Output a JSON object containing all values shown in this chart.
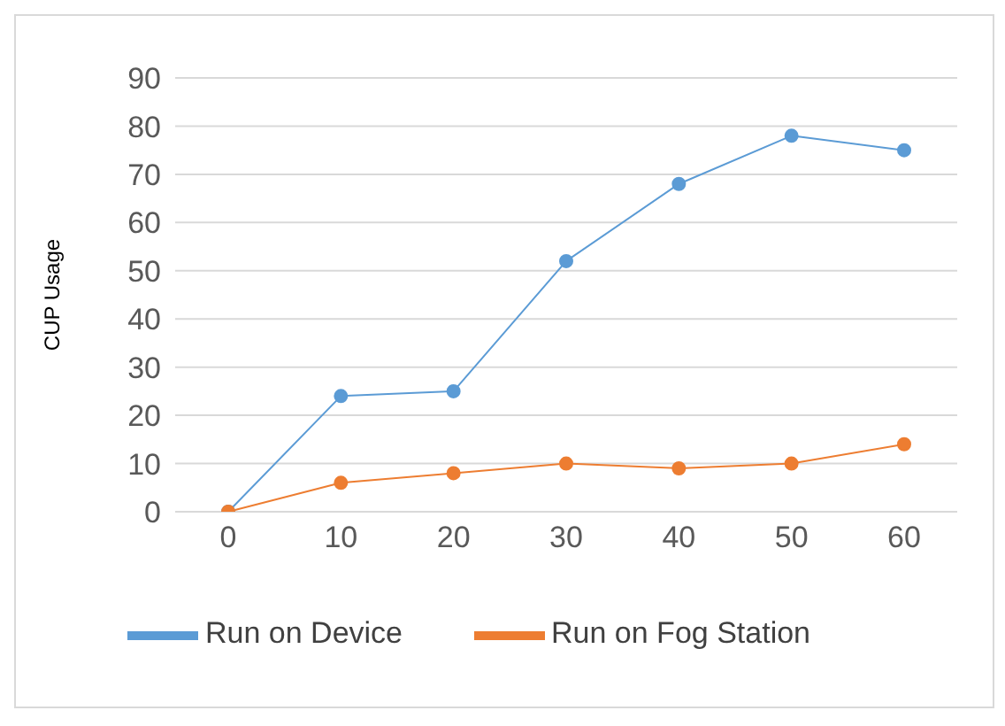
{
  "chart_data": {
    "type": "line",
    "ylabel": "CUP Usage",
    "categories": [
      "0",
      "10",
      "20",
      "30",
      "40",
      "50",
      "60"
    ],
    "series": [
      {
        "name": "Run on Device",
        "color": "#5b9bd5",
        "values": [
          0,
          24,
          25,
          52,
          68,
          78,
          75
        ]
      },
      {
        "name": "Run on Fog Station",
        "color": "#ed7d31",
        "values": [
          0,
          6,
          8,
          10,
          9,
          10,
          14
        ]
      }
    ],
    "ylim": [
      0,
      90
    ],
    "yticks": [
      0,
      10,
      20,
      30,
      40,
      50,
      60,
      70,
      80,
      90
    ],
    "grid": "y",
    "legend": "bottom",
    "marker": "circle"
  }
}
